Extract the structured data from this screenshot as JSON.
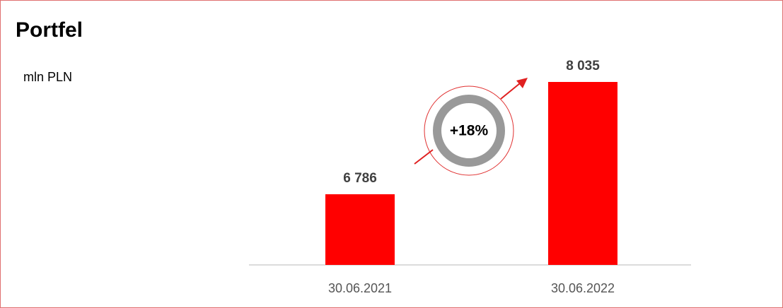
{
  "chart_data": {
    "type": "bar",
    "title": "Portfel",
    "subtitle": "mln PLN",
    "categories": [
      "30.06.2021",
      "30.06.2022"
    ],
    "values": [
      6786,
      8035
    ],
    "value_labels": [
      "6 786",
      "8 035"
    ],
    "color": "#ff0000",
    "ylim": [
      6000,
      8200
    ],
    "annotation": "+18%"
  }
}
